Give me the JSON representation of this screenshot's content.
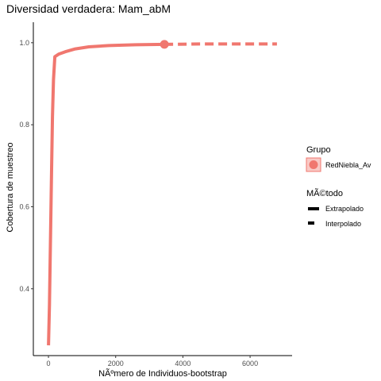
{
  "chart_data": {
    "type": "line",
    "title": "Diversidad verdadera: Mam_abM",
    "xlabel": "NÃºmero de Individuos-bootstrap",
    "ylabel": "Cobertura de muestreo",
    "xlim": [
      -450,
      7250
    ],
    "ylim": [
      0.237,
      1.05
    ],
    "x_ticks": [
      0,
      2000,
      4000,
      6000
    ],
    "x_tick_labels": [
      "0",
      "2000",
      "4000",
      "6000"
    ],
    "y_ticks": [
      0.4,
      0.6,
      0.8,
      1.0
    ],
    "y_tick_labels": [
      "0.4",
      "0.6",
      "0.8",
      "1.0"
    ],
    "grid": false,
    "legend_position": "right",
    "series": [
      {
        "name": "RedNiebla_Av",
        "color": "#F0776F",
        "interpolated": [
          [
            0,
            0.262
          ],
          [
            30,
            0.36
          ],
          [
            60,
            0.52
          ],
          [
            90,
            0.68
          ],
          [
            120,
            0.82
          ],
          [
            150,
            0.91
          ],
          [
            190,
            0.966
          ],
          [
            300,
            0.972
          ],
          [
            500,
            0.978
          ],
          [
            800,
            0.985
          ],
          [
            1200,
            0.99
          ],
          [
            1800,
            0.993
          ],
          [
            2600,
            0.995
          ],
          [
            3450,
            0.996
          ]
        ],
        "extrapolated": [
          [
            3450,
            0.996
          ],
          [
            4500,
            0.997
          ],
          [
            5500,
            0.997
          ],
          [
            6800,
            0.997
          ]
        ],
        "observed_point": [
          3450,
          0.996
        ]
      }
    ],
    "legend": {
      "group_title": "Grupo",
      "group_items": [
        "RedNiebla_Av"
      ],
      "method_title": "MÃ©todo",
      "method_items": [
        "Extrapolado",
        "Interpolado"
      ]
    }
  }
}
